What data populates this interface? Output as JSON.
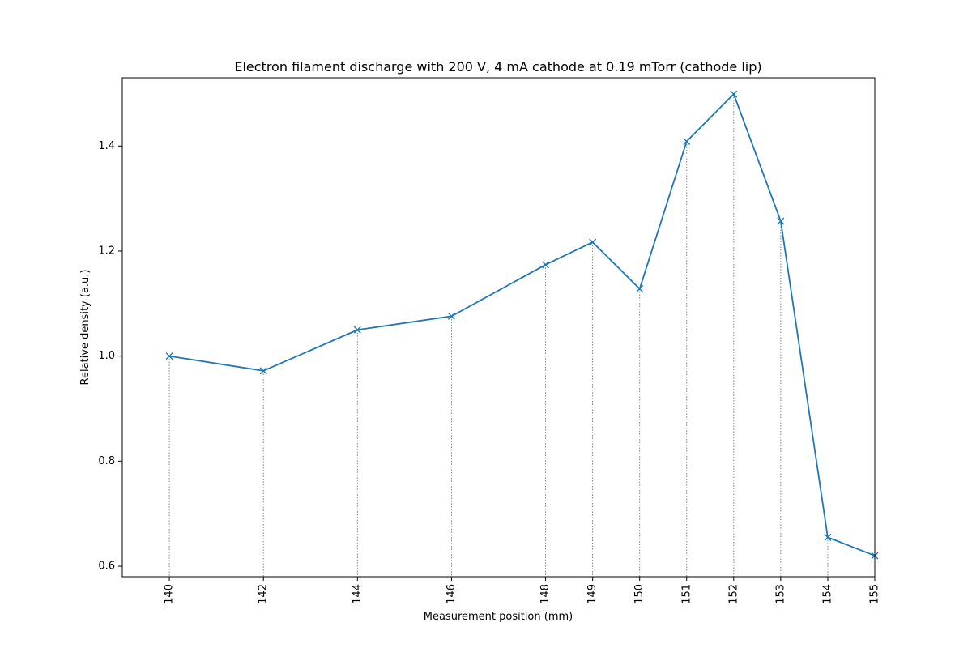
{
  "chart_data": {
    "type": "line",
    "title": "Electron filament discharge with 200 V, 4 mA cathode at 0.19 mTorr (cathode lip)",
    "xlabel": "Measurement position (mm)",
    "ylabel": "Relative density (a.u.)",
    "xlim": [
      139,
      155
    ],
    "ylim": [
      0.58,
      1.53
    ],
    "x_ticks": [
      "140",
      "142",
      "144",
      "146",
      "148",
      "149",
      "150",
      "151",
      "152",
      "153",
      "154",
      "155"
    ],
    "y_ticks": [
      "0.6",
      "0.8",
      "1.0",
      "1.2",
      "1.4"
    ],
    "grid": false,
    "series": [
      {
        "x": [
          140,
          142,
          144,
          146,
          148,
          149,
          150,
          151,
          152,
          153,
          154,
          155
        ],
        "y": [
          1.0,
          0.972,
          1.05,
          1.076,
          1.174,
          1.217,
          1.128,
          1.409,
          1.499,
          1.257,
          0.655,
          0.62
        ],
        "marker": "x",
        "color": "#1f77b4",
        "drop_lines": true,
        "drop_line_color": "#808080"
      }
    ]
  }
}
